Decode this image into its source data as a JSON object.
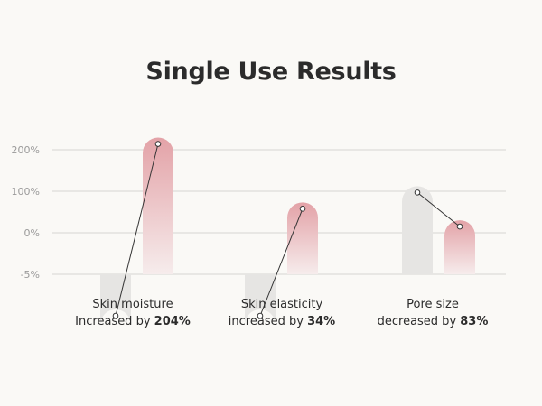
{
  "title": "Single Use Results",
  "colors": {
    "background": "#faf9f6",
    "before_bar": "#e6e5e3",
    "after_bar_top": "#e3a2a7",
    "after_bar_bottom": "#f6ecec",
    "gridline": "#d6d5d2",
    "connector": "#333333"
  },
  "captions": [
    {
      "line1": "Skin moisture",
      "line2_prefix": "Increased by ",
      "line2_value": "204%"
    },
    {
      "line1": "Skin elasticity",
      "line2_prefix": "increased by ",
      "line2_value": "34%"
    },
    {
      "line1": "Pore size",
      "line2_prefix": "decreased by ",
      "line2_value": "83%"
    }
  ],
  "chart_data": {
    "type": "bar",
    "title": "Single Use Results",
    "y_ticks": [
      "200%",
      "100%",
      "0%",
      "-5%"
    ],
    "grid": true,
    "legend": "none",
    "categories": [
      "Skin moisture",
      "Skin elasticity",
      "Pore size"
    ],
    "series": [
      {
        "values": [
          -10,
          -10,
          97
        ]
      },
      {
        "values": [
          214,
          58,
          15
        ]
      }
    ]
  }
}
